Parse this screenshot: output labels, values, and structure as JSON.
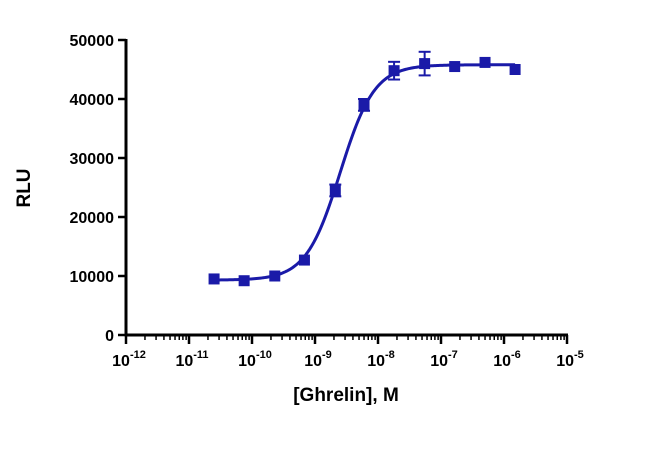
{
  "chart_data": {
    "type": "scatter",
    "xlabel": "[Ghrelin], M",
    "ylabel": "RLU",
    "x_scale": "log",
    "xlim": [
      1e-12,
      1e-05
    ],
    "ylim": [
      0,
      50000
    ],
    "x_ticks": [
      {
        "base": "10",
        "exp": "-12"
      },
      {
        "base": "10",
        "exp": "-11"
      },
      {
        "base": "10",
        "exp": "-10"
      },
      {
        "base": "10",
        "exp": "-9"
      },
      {
        "base": "10",
        "exp": "-8"
      },
      {
        "base": "10",
        "exp": "-7"
      },
      {
        "base": "10",
        "exp": "-6"
      },
      {
        "base": "10",
        "exp": "-5"
      }
    ],
    "y_ticks": [
      "0",
      "10000",
      "20000",
      "30000",
      "40000",
      "50000"
    ],
    "grid": false,
    "color": "#1a1aa8",
    "series": [
      {
        "x": [
          2.5e-11,
          7.5e-11,
          2.3e-10,
          6.8e-10,
          2.1e-09,
          6e-09,
          1.8e-08,
          5.5e-08,
          1.65e-07,
          5e-07,
          1.5e-06
        ],
        "y": [
          9500,
          9200,
          10000,
          12700,
          24500,
          39000,
          44800,
          46000,
          45500,
          46200,
          45000
        ],
        "y_err": [
          300,
          300,
          400,
          400,
          1000,
          1000,
          1500,
          2000,
          800,
          400,
          400
        ]
      }
    ],
    "fit": {
      "model": "4PL",
      "bottom": 9300,
      "top": 45800,
      "log_ec50": -8.6,
      "hill": 1.6
    }
  }
}
